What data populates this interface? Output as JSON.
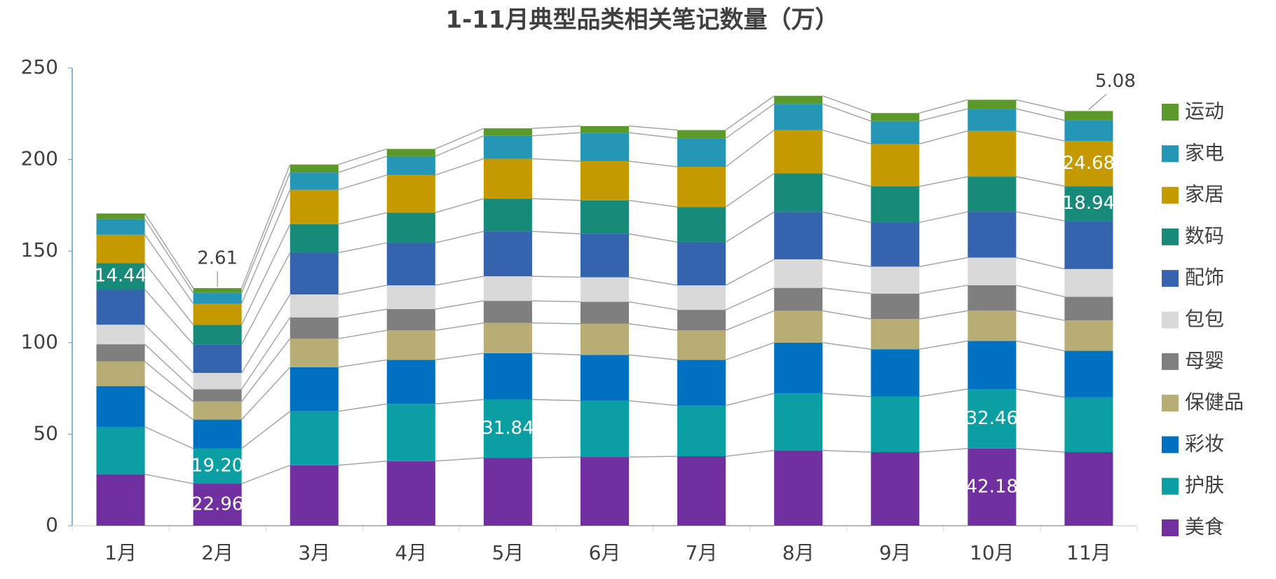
{
  "chart_data": {
    "type": "stacked_bar",
    "title": "1-11月典型品类相关笔记数量（万）",
    "categories": [
      "1月",
      "2月",
      "3月",
      "4月",
      "5月",
      "6月",
      "7月",
      "8月",
      "9月",
      "10月",
      "11月"
    ],
    "ylim": [
      0,
      250
    ],
    "yticks": [
      0,
      50,
      100,
      150,
      200,
      250
    ],
    "legend": "right",
    "connectors": true,
    "series": [
      {
        "name": "美食",
        "color": "#7030a0",
        "values": [
          28.1,
          22.96,
          33.0,
          35.3,
          37.1,
          37.5,
          37.9,
          41.1,
          40.2,
          42.18,
          40.2
        ],
        "value_labels": [
          null,
          "22.96",
          null,
          null,
          null,
          null,
          null,
          null,
          null,
          "42.18",
          null
        ]
      },
      {
        "name": "护肤",
        "color": "#0b9fa3",
        "values": [
          25.9,
          19.2,
          29.5,
          31.2,
          31.84,
          30.8,
          27.7,
          31.2,
          30.3,
          32.46,
          29.9
        ],
        "value_labels": [
          null,
          "19.20",
          null,
          null,
          "31.84",
          null,
          null,
          null,
          null,
          "32.46",
          null
        ]
      },
      {
        "name": "彩妆",
        "color": "#0070c0",
        "values": [
          22.3,
          15.8,
          24.1,
          24.1,
          25.3,
          25.0,
          25.0,
          27.7,
          25.9,
          26.3,
          25.4
        ]
      },
      {
        "name": "保健品",
        "color": "#b8ad74",
        "values": [
          13.4,
          9.9,
          15.6,
          16.1,
          16.5,
          17.0,
          16.1,
          17.4,
          16.5,
          16.5,
          16.6
        ]
      },
      {
        "name": "母婴",
        "color": "#7f7f7f",
        "values": [
          9.4,
          6.7,
          11.6,
          11.6,
          12.1,
          12.0,
          11.2,
          12.5,
          13.9,
          13.9,
          12.9
        ]
      },
      {
        "name": "包包",
        "color": "#d9d9d9",
        "values": [
          10.7,
          8.9,
          12.5,
          13.0,
          13.4,
          13.4,
          13.4,
          15.6,
          14.7,
          15.1,
          15.2
        ]
      },
      {
        "name": "配饰",
        "color": "#3563ad",
        "values": [
          19.2,
          15.6,
          22.8,
          23.2,
          24.5,
          23.7,
          23.6,
          25.9,
          24.1,
          25.0,
          26.3
        ]
      },
      {
        "name": "数码",
        "color": "#178a79",
        "values": [
          14.44,
          10.7,
          15.6,
          16.5,
          17.9,
          18.3,
          19.2,
          21.0,
          19.7,
          19.2,
          18.94
        ],
        "value_labels": [
          "14.44",
          null,
          null,
          null,
          null,
          null,
          null,
          null,
          null,
          null,
          "18.94"
        ]
      },
      {
        "name": "家居",
        "color": "#c49a00",
        "values": [
          15.5,
          11.6,
          18.8,
          20.5,
          21.8,
          21.4,
          21.9,
          23.7,
          23.2,
          25.0,
          24.68
        ],
        "value_labels": [
          null,
          null,
          null,
          null,
          null,
          null,
          null,
          null,
          null,
          null,
          "24.68"
        ]
      },
      {
        "name": "家电",
        "color": "#2596b5",
        "values": [
          8.5,
          5.8,
          9.4,
          10.3,
          12.5,
          15.6,
          15.6,
          14.3,
          12.5,
          12.1,
          11.3
        ]
      },
      {
        "name": "运动",
        "color": "#5b9a2a",
        "values": [
          3.1,
          2.61,
          4.4,
          4.0,
          4.1,
          3.6,
          4.5,
          4.4,
          4.4,
          4.9,
          5.08
        ],
        "value_labels": [
          null,
          "2.61",
          null,
          null,
          null,
          null,
          null,
          null,
          null,
          null,
          "5.08"
        ]
      }
    ]
  }
}
